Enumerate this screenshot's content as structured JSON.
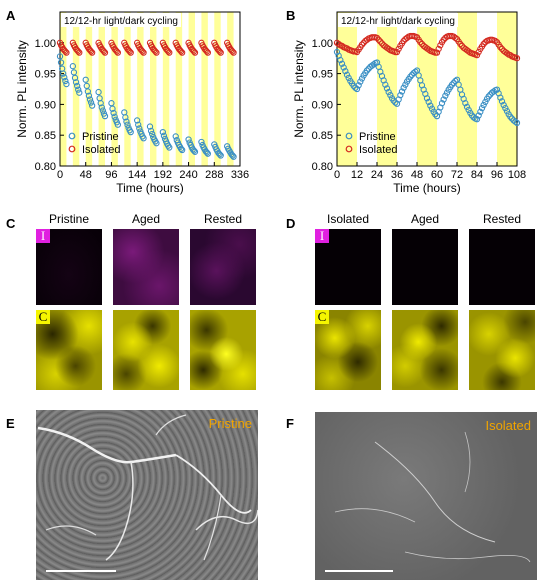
{
  "colors": {
    "band": "#ffff99",
    "pristine": "#3a8fc4",
    "isolated": "#d42a20",
    "iodine": "#c030c0",
    "carbon": "#e8e800",
    "sem_label": "#f0a400"
  },
  "panel_letters": [
    "A",
    "B",
    "C",
    "D",
    "E",
    "F"
  ],
  "chart_data": [
    {
      "id": "A",
      "type": "scatter",
      "title": "12/12-hr light/dark cycling",
      "xlabel": "Time (hours)",
      "ylabel": "Norm. PL intensity",
      "xlim": [
        0,
        336
      ],
      "ylim": [
        0.8,
        1.05
      ],
      "x_ticks": [
        "0",
        "48",
        "96",
        "144",
        "192",
        "240",
        "288",
        "336"
      ],
      "y_ticks": [
        "0.80",
        "0.85",
        "0.90",
        "0.95",
        "1.00"
      ],
      "legend_position": "bottom-left",
      "light_periods": [
        [
          0,
          12
        ],
        [
          24,
          36
        ],
        [
          48,
          60
        ],
        [
          72,
          84
        ],
        [
          96,
          108
        ],
        [
          120,
          132
        ],
        [
          144,
          156
        ],
        [
          168,
          180
        ],
        [
          192,
          204
        ],
        [
          216,
          228
        ],
        [
          240,
          252
        ],
        [
          264,
          276
        ],
        [
          288,
          300
        ],
        [
          312,
          324
        ]
      ],
      "series": [
        {
          "name": "Pristine",
          "x": [
            0,
            2,
            4,
            6,
            8,
            10,
            12,
            24,
            26,
            28,
            30,
            32,
            34,
            36,
            48,
            50,
            52,
            54,
            56,
            58,
            60,
            72,
            74,
            76,
            78,
            80,
            82,
            84,
            96,
            98,
            100,
            102,
            104,
            106,
            108,
            120,
            122,
            124,
            126,
            128,
            130,
            132,
            144,
            146,
            148,
            150,
            152,
            154,
            156,
            168,
            170,
            172,
            174,
            176,
            178,
            180,
            192,
            194,
            196,
            198,
            200,
            202,
            204,
            216,
            218,
            220,
            222,
            224,
            226,
            228,
            240,
            242,
            244,
            246,
            248,
            250,
            252,
            264,
            266,
            268,
            270,
            272,
            274,
            276,
            288,
            290,
            292,
            294,
            296,
            298,
            300,
            312,
            314,
            316,
            318,
            320,
            322,
            324
          ],
          "y": [
            0.978,
            0.968,
            0.958,
            0.95,
            0.944,
            0.938,
            0.933,
            0.962,
            0.952,
            0.943,
            0.936,
            0.93,
            0.924,
            0.919,
            0.94,
            0.93,
            0.921,
            0.914,
            0.908,
            0.903,
            0.898,
            0.92,
            0.91,
            0.902,
            0.895,
            0.89,
            0.885,
            0.881,
            0.902,
            0.893,
            0.886,
            0.88,
            0.875,
            0.871,
            0.867,
            0.887,
            0.879,
            0.872,
            0.867,
            0.862,
            0.858,
            0.855,
            0.874,
            0.867,
            0.861,
            0.856,
            0.852,
            0.848,
            0.845,
            0.864,
            0.857,
            0.852,
            0.847,
            0.843,
            0.84,
            0.837,
            0.855,
            0.849,
            0.844,
            0.84,
            0.836,
            0.833,
            0.83,
            0.848,
            0.842,
            0.838,
            0.834,
            0.831,
            0.828,
            0.826,
            0.843,
            0.838,
            0.834,
            0.83,
            0.827,
            0.825,
            0.823,
            0.839,
            0.834,
            0.83,
            0.827,
            0.824,
            0.822,
            0.82,
            0.835,
            0.831,
            0.827,
            0.824,
            0.821,
            0.819,
            0.817,
            0.832,
            0.828,
            0.825,
            0.822,
            0.819,
            0.817,
            0.815
          ]
        },
        {
          "name": "Isolated",
          "x": [
            0,
            2,
            4,
            6,
            8,
            10,
            12,
            24,
            26,
            28,
            30,
            32,
            34,
            36,
            48,
            50,
            52,
            54,
            56,
            58,
            60,
            72,
            74,
            76,
            78,
            80,
            82,
            84,
            96,
            98,
            100,
            102,
            104,
            106,
            108,
            120,
            122,
            124,
            126,
            128,
            130,
            132,
            144,
            146,
            148,
            150,
            152,
            154,
            156,
            168,
            170,
            172,
            174,
            176,
            178,
            180,
            192,
            194,
            196,
            198,
            200,
            202,
            204,
            216,
            218,
            220,
            222,
            224,
            226,
            228,
            240,
            242,
            244,
            246,
            248,
            250,
            252,
            264,
            266,
            268,
            270,
            272,
            274,
            276,
            288,
            290,
            292,
            294,
            296,
            298,
            300,
            312,
            314,
            316,
            318,
            320,
            322,
            324
          ],
          "y": [
            1.0,
            0.996,
            0.993,
            0.99,
            0.988,
            0.986,
            0.984,
            1.0,
            0.996,
            0.993,
            0.99,
            0.988,
            0.986,
            0.984,
            1.0,
            0.996,
            0.993,
            0.99,
            0.988,
            0.986,
            0.984,
            1.0,
            0.996,
            0.993,
            0.99,
            0.988,
            0.986,
            0.984,
            1.0,
            0.996,
            0.993,
            0.99,
            0.988,
            0.986,
            0.984,
            1.0,
            0.996,
            0.993,
            0.99,
            0.988,
            0.986,
            0.984,
            1.0,
            0.996,
            0.993,
            0.99,
            0.988,
            0.986,
            0.984,
            1.0,
            0.996,
            0.993,
            0.99,
            0.988,
            0.986,
            0.984,
            1.0,
            0.996,
            0.993,
            0.99,
            0.988,
            0.986,
            0.984,
            1.0,
            0.996,
            0.993,
            0.99,
            0.988,
            0.986,
            0.984,
            1.0,
            0.996,
            0.993,
            0.99,
            0.988,
            0.986,
            0.984,
            1.0,
            0.996,
            0.993,
            0.99,
            0.988,
            0.986,
            0.984,
            1.0,
            0.996,
            0.993,
            0.99,
            0.988,
            0.986,
            0.984,
            1.0,
            0.996,
            0.993,
            0.99,
            0.988,
            0.986,
            0.984
          ]
        }
      ]
    },
    {
      "id": "B",
      "type": "scatter",
      "title": "12/12-hr light/dark cycling",
      "xlabel": "Time (hours)",
      "ylabel": "Norm. PL intensity",
      "xlim": [
        0,
        108
      ],
      "ylim": [
        0.8,
        1.05
      ],
      "x_ticks": [
        "0",
        "12",
        "24",
        "36",
        "48",
        "60",
        "72",
        "84",
        "96",
        "108"
      ],
      "y_ticks": [
        "0.80",
        "0.85",
        "0.90",
        "0.95",
        "1.00"
      ],
      "legend_position": "bottom-left",
      "light_periods": [
        [
          0,
          12
        ],
        [
          24,
          36
        ],
        [
          48,
          60
        ],
        [
          72,
          84
        ],
        [
          96,
          108
        ]
      ],
      "series": [
        {
          "name": "Pristine",
          "x": [
            0,
            1,
            2,
            3,
            4,
            5,
            6,
            7,
            8,
            9,
            10,
            11,
            12,
            13,
            14,
            15,
            16,
            17,
            18,
            19,
            20,
            21,
            22,
            23,
            24,
            25,
            26,
            27,
            28,
            29,
            30,
            31,
            32,
            33,
            34,
            35,
            36,
            37,
            38,
            39,
            40,
            41,
            42,
            43,
            44,
            45,
            46,
            47,
            48,
            49,
            50,
            51,
            52,
            53,
            54,
            55,
            56,
            57,
            58,
            59,
            60,
            61,
            62,
            63,
            64,
            65,
            66,
            67,
            68,
            69,
            70,
            71,
            72,
            73,
            74,
            75,
            76,
            77,
            78,
            79,
            80,
            81,
            82,
            83,
            84,
            85,
            86,
            87,
            88,
            89,
            90,
            91,
            92,
            93,
            94,
            95,
            96,
            97,
            98,
            99,
            100,
            101,
            102,
            103,
            104,
            105,
            106,
            107,
            108
          ],
          "y": [
            0.985,
            0.979,
            0.972,
            0.966,
            0.96,
            0.954,
            0.948,
            0.943,
            0.938,
            0.934,
            0.93,
            0.927,
            0.925,
            0.931,
            0.937,
            0.942,
            0.947,
            0.951,
            0.955,
            0.958,
            0.961,
            0.963,
            0.965,
            0.967,
            0.968,
            0.961,
            0.953,
            0.946,
            0.939,
            0.932,
            0.926,
            0.92,
            0.915,
            0.91,
            0.906,
            0.903,
            0.901,
            0.908,
            0.915,
            0.921,
            0.927,
            0.932,
            0.937,
            0.941,
            0.945,
            0.948,
            0.951,
            0.953,
            0.955,
            0.947,
            0.939,
            0.931,
            0.924,
            0.917,
            0.91,
            0.904,
            0.898,
            0.893,
            0.888,
            0.884,
            0.881,
            0.888,
            0.895,
            0.902,
            0.908,
            0.914,
            0.919,
            0.924,
            0.928,
            0.932,
            0.935,
            0.938,
            0.94,
            0.932,
            0.924,
            0.916,
            0.909,
            0.902,
            0.896,
            0.891,
            0.886,
            0.882,
            0.879,
            0.877,
            0.876,
            0.882,
            0.888,
            0.894,
            0.899,
            0.904,
            0.909,
            0.913,
            0.916,
            0.919,
            0.921,
            0.923,
            0.924,
            0.918,
            0.911,
            0.905,
            0.899,
            0.894,
            0.889,
            0.884,
            0.88,
            0.877,
            0.874,
            0.872,
            0.87
          ]
        },
        {
          "name": "Isolated",
          "x": [
            0,
            1,
            2,
            3,
            4,
            5,
            6,
            7,
            8,
            9,
            10,
            11,
            12,
            13,
            14,
            15,
            16,
            17,
            18,
            19,
            20,
            21,
            22,
            23,
            24,
            25,
            26,
            27,
            28,
            29,
            30,
            31,
            32,
            33,
            34,
            35,
            36,
            37,
            38,
            39,
            40,
            41,
            42,
            43,
            44,
            45,
            46,
            47,
            48,
            49,
            50,
            51,
            52,
            53,
            54,
            55,
            56,
            57,
            58,
            59,
            60,
            61,
            62,
            63,
            64,
            65,
            66,
            67,
            68,
            69,
            70,
            71,
            72,
            73,
            74,
            75,
            76,
            77,
            78,
            79,
            80,
            81,
            82,
            83,
            84,
            85,
            86,
            87,
            88,
            89,
            90,
            91,
            92,
            93,
            94,
            95,
            96,
            97,
            98,
            99,
            100,
            101,
            102,
            103,
            104,
            105,
            106,
            107,
            108
          ],
          "y": [
            1.0,
            0.998,
            0.996,
            0.995,
            0.993,
            0.992,
            0.991,
            0.989,
            0.988,
            0.987,
            0.986,
            0.986,
            0.985,
            0.989,
            0.993,
            0.997,
            1.0,
            1.003,
            1.005,
            1.007,
            1.008,
            1.009,
            1.009,
            1.009,
            1.008,
            1.005,
            1.002,
            0.999,
            0.996,
            0.994,
            0.992,
            0.99,
            0.988,
            0.987,
            0.986,
            0.985,
            0.985,
            0.99,
            0.995,
            0.999,
            1.003,
            1.006,
            1.008,
            1.01,
            1.011,
            1.011,
            1.011,
            1.01,
            1.009,
            1.005,
            1.001,
            0.998,
            0.995,
            0.993,
            0.991,
            0.989,
            0.987,
            0.986,
            0.985,
            0.984,
            0.984,
            0.99,
            0.996,
            1.001,
            1.005,
            1.008,
            1.01,
            1.011,
            1.011,
            1.011,
            1.01,
            1.008,
            1.006,
            1.002,
            0.998,
            0.995,
            0.992,
            0.99,
            0.988,
            0.986,
            0.984,
            0.983,
            0.982,
            0.981,
            0.98,
            0.985,
            0.99,
            0.994,
            0.998,
            1.001,
            1.003,
            1.004,
            1.005,
            1.005,
            1.004,
            1.003,
            1.001,
            0.997,
            0.993,
            0.99,
            0.987,
            0.985,
            0.983,
            0.981,
            0.98,
            0.978,
            0.977,
            0.976,
            0.975
          ]
        }
      ]
    }
  ],
  "panels": {
    "C": {
      "titles": [
        "Pristine",
        "Aged",
        "Rested"
      ],
      "iodine_tag": "I",
      "carbon_tag": "C"
    },
    "D": {
      "titles": [
        "Isolated",
        "Aged",
        "Rested"
      ],
      "iodine_tag": "I",
      "carbon_tag": "C"
    },
    "E": {
      "label": "Pristine"
    },
    "F": {
      "label": "Isolated"
    }
  }
}
